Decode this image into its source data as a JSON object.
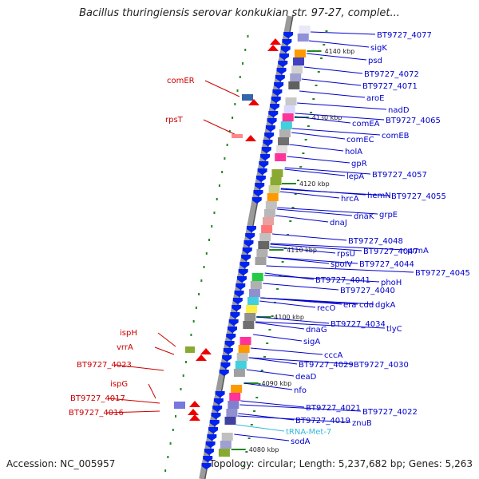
{
  "header": {
    "title": "Bacillus thuringiensis serovar konkukian str. 97-27, complet...",
    "accession": "Accession: NC_005957",
    "topology": "Topology: circular; Length: 5,237,682 bp; Genes: 5,263"
  },
  "colors": {
    "right_gene_label": "#0000cc",
    "left_gene_label": "#cc0000",
    "trna_label": "#33bbdd",
    "forward_marker": "#ee0000",
    "reverse_marker": "#0022ee",
    "backbone": "#9a9a9a",
    "tick": "#228822"
  },
  "kbp_marks": [
    "4140 kbp",
    "4130 kbp",
    "4120 kbp",
    "4110 kbp",
    "4100 kbp",
    "4090 kbp",
    "4080 kbp"
  ],
  "right_labels": [
    "BT9727_4077",
    "sigK",
    "psd",
    "BT9727_4072",
    "BT9727_4071",
    "aroE",
    "nadD",
    "BT9727_4065",
    "comEA",
    "comEB",
    "comEC",
    "holA",
    "gpR",
    "lepA",
    "BT9727_4057",
    "hrcA",
    "hemN",
    "BT9727_4055",
    "dnaK",
    "grpE",
    "dnaJ",
    "BT9727_4048",
    "rpsU",
    "BT9727_4047",
    "prmA",
    "spoIV",
    "BT9727_4044",
    "BT9727_4045",
    "BT9727_4041",
    "phoH",
    "BT9727_4040",
    "recO",
    "era",
    "cdd",
    "dgkA",
    "BT9727_4034",
    "dnaG",
    "tlyC",
    "sigA",
    "cccA",
    "BT9727_4029",
    "BT9727_4030",
    "deaD",
    "nfo",
    "BT9727_4021",
    "BT9727_4022",
    "BT9727_4019",
    "znuB",
    "tRNA-Met-7",
    "sodA"
  ],
  "left_labels": [
    "comER",
    "rpsT",
    "ispH",
    "vrrA",
    "BT9727_4023",
    "ispG",
    "BT9727_4017",
    "BT9727_4016"
  ]
}
